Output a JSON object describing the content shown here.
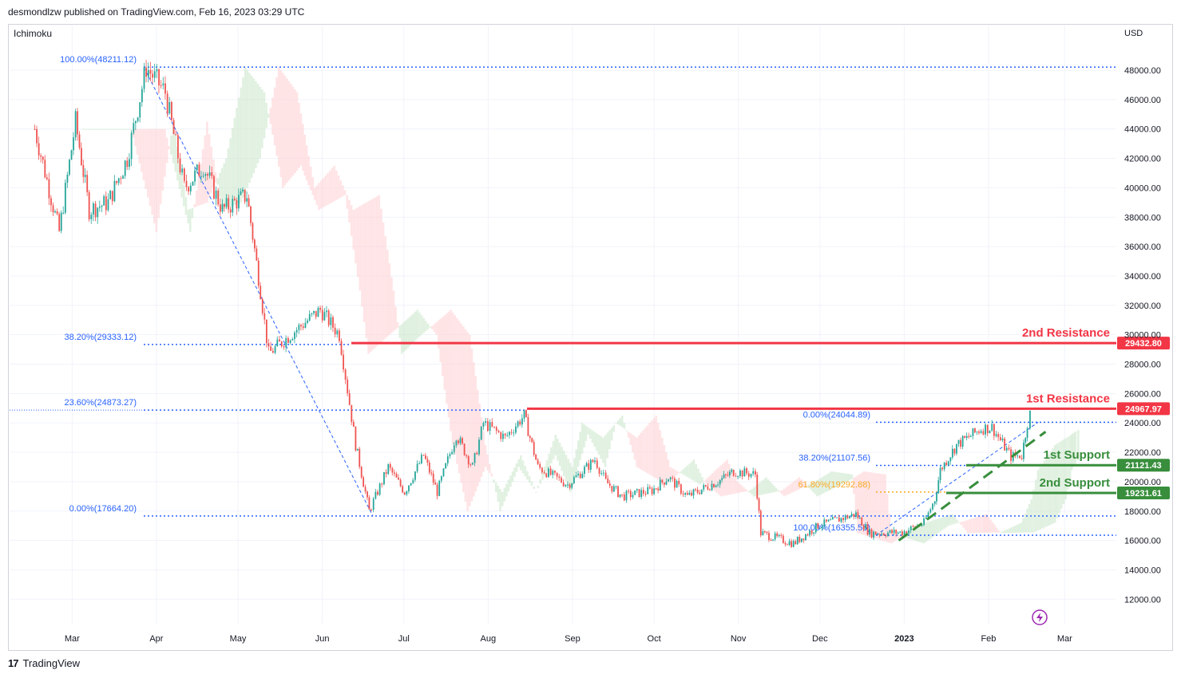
{
  "header": {
    "publisher": "desmondlzw published on TradingView.com, Feb 16, 2023 03:29 UTC"
  },
  "indicator": {
    "name": "Ichimoku"
  },
  "footer": {
    "brand": "TradingView",
    "logo_icon": "tradingview-logo-icon"
  },
  "colors": {
    "up": "#26a69a",
    "down": "#ef5350",
    "fib": "#2962ff",
    "resistance": "#f23645",
    "support": "#388e3c",
    "fib_618": "#f9a825",
    "cloud_green": "#c8e6c9",
    "cloud_red": "#ffcdd2"
  },
  "chart_data": {
    "type": "candlestick",
    "symbol_currency": "USD",
    "ylim": [
      10000,
      50000
    ],
    "y_ticks": [
      "48000.00",
      "46000.00",
      "44000.00",
      "42000.00",
      "40000.00",
      "38000.00",
      "36000.00",
      "34000.00",
      "32000.00",
      "30000.00",
      "28000.00",
      "26000.00",
      "24000.00",
      "22000.00",
      "20000.00",
      "18000.00",
      "16000.00",
      "14000.00",
      "12000.00"
    ],
    "x_ticks": [
      "Mar",
      "Apr",
      "May",
      "Jun",
      "Jul",
      "Aug",
      "Sep",
      "Oct",
      "Nov",
      "Dec",
      "2023",
      "Feb",
      "Mar"
    ],
    "price_path": [
      [
        "2022-02-15",
        44000
      ],
      [
        "2022-02-24",
        37000
      ],
      [
        "2022-03-02",
        44500
      ],
      [
        "2022-03-07",
        38500
      ],
      [
        "2022-03-14",
        39000
      ],
      [
        "2022-03-21",
        42000
      ],
      [
        "2022-03-28",
        48200
      ],
      [
        "2022-04-04",
        46500
      ],
      [
        "2022-04-11",
        40000
      ],
      [
        "2022-04-18",
        41500
      ],
      [
        "2022-04-25",
        38500
      ],
      [
        "2022-05-04",
        39500
      ],
      [
        "2022-05-09",
        33000
      ],
      [
        "2022-05-12",
        28700
      ],
      [
        "2022-05-20",
        30000
      ],
      [
        "2022-05-31",
        31700
      ],
      [
        "2022-06-07",
        30000
      ],
      [
        "2022-06-13",
        22500
      ],
      [
        "2022-06-18",
        18000
      ],
      [
        "2022-06-25",
        21000
      ],
      [
        "2022-07-01",
        19300
      ],
      [
        "2022-07-08",
        21800
      ],
      [
        "2022-07-13",
        19300
      ],
      [
        "2022-07-20",
        23200
      ],
      [
        "2022-07-26",
        21000
      ],
      [
        "2022-07-30",
        24000
      ],
      [
        "2022-08-07",
        23000
      ],
      [
        "2022-08-14",
        24500
      ],
      [
        "2022-08-19",
        21000
      ],
      [
        "2022-08-30",
        19800
      ],
      [
        "2022-09-09",
        21500
      ],
      [
        "2022-09-13",
        20000
      ],
      [
        "2022-09-19",
        19000
      ],
      [
        "2022-09-30",
        19400
      ],
      [
        "2022-10-06",
        20300
      ],
      [
        "2022-10-13",
        19000
      ],
      [
        "2022-10-25",
        20100
      ],
      [
        "2022-10-30",
        20700
      ],
      [
        "2022-11-07",
        20500
      ],
      [
        "2022-11-09",
        16500
      ],
      [
        "2022-11-21",
        15800
      ],
      [
        "2022-11-30",
        17000
      ],
      [
        "2022-12-14",
        17800
      ],
      [
        "2022-12-19",
        16500
      ],
      [
        "2022-12-31",
        16550
      ],
      [
        "2023-01-08",
        17200
      ],
      [
        "2023-01-12",
        18800
      ],
      [
        "2023-01-14",
        20800
      ],
      [
        "2023-01-20",
        22500
      ],
      [
        "2023-01-29",
        23600
      ],
      [
        "2023-02-02",
        23700
      ],
      [
        "2023-02-09",
        21700
      ],
      [
        "2023-02-13",
        21800
      ],
      [
        "2023-02-15",
        24000
      ],
      [
        "2023-02-16",
        24600
      ]
    ],
    "fib_retracements": [
      {
        "label": "100.00%(48211.12)",
        "value": 48211.12
      },
      {
        "label": "38.20%(29333.12)",
        "value": 29333.12
      },
      {
        "label": "23.60%(24873.27)",
        "value": 24873.27
      },
      {
        "label": "0.00%(17664.20)",
        "value": 17664.2
      },
      {
        "label": "0.00%(24044.89)",
        "value": 24044.89
      },
      {
        "label": "38.20%(21107.56)",
        "value": 21107.56
      },
      {
        "label": "61.80%(19292.88)",
        "value": 19292.88
      },
      {
        "label": "100.00%(16355.55)",
        "value": 16355.55
      }
    ],
    "levels": [
      {
        "name": "2nd Resistance",
        "value": 29432.8,
        "label": "29432.80",
        "kind": "resistance"
      },
      {
        "name": "1st Resistance",
        "value": 24967.97,
        "label": "24967.97",
        "kind": "resistance"
      },
      {
        "name": "1st Support",
        "value": 21121.43,
        "label": "21121.43",
        "kind": "support"
      },
      {
        "name": "2nd Support",
        "value": 19231.61,
        "label": "19231.61",
        "kind": "support"
      }
    ],
    "trendline": {
      "kind": "support",
      "start": [
        "2022-12-30",
        16000
      ],
      "end": [
        "2023-02-22",
        23400
      ]
    }
  }
}
